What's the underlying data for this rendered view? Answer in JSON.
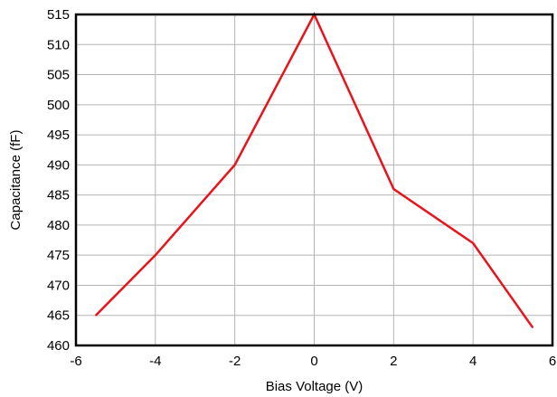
{
  "chart_data": {
    "type": "line",
    "title": "",
    "xlabel": "Bias Voltage (V)",
    "ylabel": "Capacitance (fF)",
    "xlim": [
      -6,
      6
    ],
    "ylim": [
      460,
      515
    ],
    "x_ticks": [
      "-6",
      "-4",
      "-2",
      "0",
      "2",
      "4",
      "6"
    ],
    "y_ticks": [
      "460",
      "465",
      "470",
      "475",
      "480",
      "485",
      "490",
      "495",
      "500",
      "505",
      "510",
      "515"
    ],
    "grid": true,
    "series": [
      {
        "color": "#e8141b",
        "x": [
          -5.5,
          -4,
          -2,
          0,
          2,
          4,
          5.5
        ],
        "y": [
          465,
          475,
          490,
          515,
          486,
          477,
          463
        ]
      }
    ]
  }
}
